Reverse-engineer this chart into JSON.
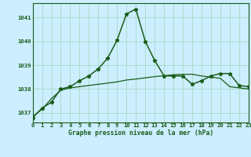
{
  "title": "Graphe pression niveau de la mer (hPa)",
  "background_color": "#cceeff",
  "grid_color": "#aaddcc",
  "line_color": "#1a5c1a",
  "x_min": 0,
  "x_max": 23,
  "y_min": 1036.6,
  "y_max": 1041.6,
  "y_ticks": [
    1037,
    1038,
    1039,
    1040,
    1041
  ],
  "x_ticks": [
    0,
    1,
    2,
    3,
    4,
    5,
    6,
    7,
    8,
    9,
    10,
    11,
    12,
    13,
    14,
    15,
    16,
    17,
    18,
    19,
    20,
    21,
    22,
    23
  ],
  "series1_x": [
    0,
    1,
    2,
    3,
    4,
    5,
    6,
    7,
    8,
    9,
    10,
    11,
    12,
    13,
    14,
    15,
    16,
    17,
    18,
    19,
    20,
    21,
    22,
    23
  ],
  "series1_y": [
    1036.8,
    1037.2,
    1037.45,
    1038.0,
    1038.1,
    1038.35,
    1038.55,
    1038.85,
    1039.3,
    1040.05,
    1041.15,
    1041.35,
    1040.0,
    1039.2,
    1038.55,
    1038.55,
    1038.55,
    1038.2,
    1038.35,
    1038.55,
    1038.65,
    1038.65,
    1038.15,
    1038.1
  ],
  "series2_x": [
    0,
    1,
    2,
    3,
    4,
    5,
    6,
    7,
    8,
    9,
    10,
    11,
    12,
    13,
    14,
    15,
    16,
    17,
    18,
    19,
    20,
    21,
    22,
    23
  ],
  "series2_y": [
    1036.85,
    1037.15,
    1037.6,
    1037.95,
    1038.05,
    1038.1,
    1038.15,
    1038.2,
    1038.25,
    1038.3,
    1038.38,
    1038.42,
    1038.47,
    1038.52,
    1038.56,
    1038.6,
    1038.62,
    1038.62,
    1038.55,
    1038.5,
    1038.45,
    1038.1,
    1038.05,
    1038.0
  ]
}
